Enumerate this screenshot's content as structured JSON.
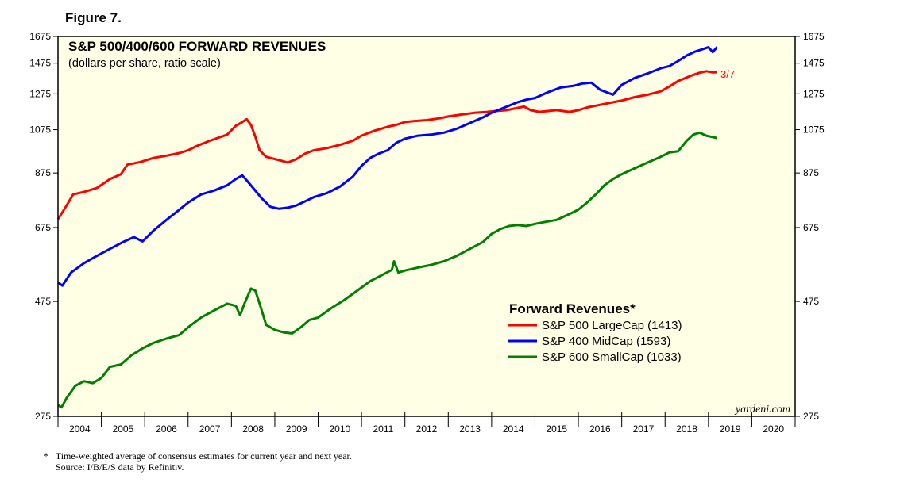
{
  "figure_label": "Figure 7.",
  "footnote": {
    "marker": "*",
    "line1": "Time-weighted average of consensus estimates for current year and next year.",
    "line2": "Source: I/B/E/S data by Refinitiv."
  },
  "colors": {
    "background": "#ffffe6",
    "sp500": "#ff0000",
    "sp400": "#0000ff",
    "sp600": "#008000"
  },
  "chart_data": {
    "type": "line",
    "title": "S&P 500/400/600 FORWARD REVENUES",
    "subtitle": "(dollars per share, ratio scale)",
    "scale": "log",
    "ylim": [
      275,
      1675
    ],
    "yticks": [
      "275",
      "475",
      "675",
      "875",
      "1075",
      "1275",
      "1475",
      "1675"
    ],
    "xticks": [
      "2004",
      "2005",
      "2006",
      "2007",
      "2008",
      "2009",
      "2010",
      "2011",
      "2012",
      "2013",
      "2014",
      "2015",
      "2016",
      "2017",
      "2018",
      "2019",
      "2020"
    ],
    "xlim": [
      2004.0,
      2021.0
    ],
    "legend_title": "Forward Revenues*",
    "end_annotation": "3/7",
    "source_label": "yardeni.com",
    "series": [
      {
        "name": "S&P 500 LargeCap (1413)",
        "color": "#ff0000",
        "x": [
          2004.0,
          2004.2,
          2004.35,
          2004.6,
          2004.9,
          2005.2,
          2005.45,
          2005.6,
          2005.9,
          2006.2,
          2006.5,
          2006.8,
          2007.0,
          2007.2,
          2007.5,
          2007.9,
          2008.1,
          2008.25,
          2008.35,
          2008.45,
          2008.55,
          2008.65,
          2008.8,
          2009.0,
          2009.2,
          2009.3,
          2009.5,
          2009.7,
          2009.9,
          2010.2,
          2010.5,
          2010.8,
          2011.0,
          2011.3,
          2011.6,
          2011.8,
          2012.0,
          2012.2,
          2012.5,
          2012.8,
          2013.0,
          2013.3,
          2013.6,
          2013.9,
          2014.1,
          2014.35,
          2014.55,
          2014.75,
          2014.9,
          2015.1,
          2015.3,
          2015.5,
          2015.8,
          2016.0,
          2016.2,
          2016.5,
          2016.8,
          2017.0,
          2017.3,
          2017.6,
          2017.9,
          2018.1,
          2018.3,
          2018.6,
          2018.8,
          2018.95,
          2019.1,
          2019.2
        ],
        "values": [
          702,
          750,
          790,
          800,
          815,
          850,
          870,
          910,
          922,
          940,
          950,
          962,
          975,
          995,
          1020,
          1050,
          1095,
          1115,
          1130,
          1100,
          1040,
          975,
          945,
          935,
          925,
          920,
          935,
          960,
          975,
          985,
          1000,
          1020,
          1045,
          1070,
          1090,
          1100,
          1115,
          1120,
          1125,
          1135,
          1145,
          1155,
          1165,
          1170,
          1175,
          1180,
          1190,
          1200,
          1180,
          1170,
          1175,
          1180,
          1170,
          1180,
          1195,
          1210,
          1225,
          1235,
          1255,
          1270,
          1290,
          1320,
          1355,
          1390,
          1410,
          1420,
          1412,
          1413
        ]
      },
      {
        "name": "S&P 400 MidCap (1593)",
        "color": "#0000ff",
        "x": [
          2004.0,
          2004.1,
          2004.3,
          2004.6,
          2004.9,
          2005.2,
          2005.5,
          2005.75,
          2005.95,
          2006.2,
          2006.5,
          2006.8,
          2007.0,
          2007.3,
          2007.6,
          2007.9,
          2008.1,
          2008.25,
          2008.35,
          2008.5,
          2008.7,
          2008.9,
          2009.1,
          2009.3,
          2009.5,
          2009.7,
          2009.9,
          2010.2,
          2010.5,
          2010.8,
          2011.0,
          2011.2,
          2011.4,
          2011.6,
          2011.8,
          2012.0,
          2012.3,
          2012.6,
          2012.9,
          2013.2,
          2013.5,
          2013.8,
          2014.0,
          2014.3,
          2014.6,
          2014.8,
          2015.0,
          2015.3,
          2015.6,
          2015.9,
          2016.1,
          2016.3,
          2016.5,
          2016.8,
          2017.0,
          2017.3,
          2017.6,
          2017.9,
          2018.1,
          2018.3,
          2018.5,
          2018.7,
          2018.85,
          2019.0,
          2019.1,
          2019.2
        ],
        "values": [
          520,
          512,
          545,
          570,
          590,
          610,
          630,
          645,
          632,
          665,
          700,
          735,
          760,
          790,
          805,
          825,
          850,
          865,
          845,
          815,
          775,
          745,
          738,
          742,
          750,
          765,
          780,
          795,
          820,
          860,
          905,
          940,
          960,
          975,
          1010,
          1030,
          1045,
          1050,
          1060,
          1080,
          1110,
          1140,
          1165,
          1195,
          1225,
          1240,
          1250,
          1285,
          1315,
          1325,
          1340,
          1345,
          1300,
          1270,
          1330,
          1375,
          1405,
          1440,
          1455,
          1490,
          1530,
          1560,
          1575,
          1592,
          1555,
          1593
        ]
      },
      {
        "name": "S&P 600 SmallCap (1033)",
        "color": "#008000",
        "x": [
          2004.0,
          2004.08,
          2004.2,
          2004.4,
          2004.6,
          2004.8,
          2005.0,
          2005.2,
          2005.45,
          2005.7,
          2005.95,
          2006.2,
          2006.5,
          2006.8,
          2007.0,
          2007.3,
          2007.6,
          2007.9,
          2008.1,
          2008.2,
          2008.3,
          2008.45,
          2008.55,
          2008.65,
          2008.8,
          2009.0,
          2009.2,
          2009.4,
          2009.6,
          2009.8,
          2010.0,
          2010.3,
          2010.6,
          2010.9,
          2011.2,
          2011.5,
          2011.7,
          2011.75,
          2011.85,
          2012.0,
          2012.3,
          2012.6,
          2012.9,
          2013.2,
          2013.5,
          2013.8,
          2014.0,
          2014.2,
          2014.4,
          2014.6,
          2014.8,
          2015.0,
          2015.3,
          2015.5,
          2015.8,
          2016.0,
          2016.2,
          2016.4,
          2016.6,
          2016.8,
          2017.0,
          2017.3,
          2017.6,
          2017.9,
          2018.1,
          2018.3,
          2018.5,
          2018.65,
          2018.8,
          2018.95,
          2019.05,
          2019.2
        ],
        "values": [
          290,
          287,
          300,
          318,
          325,
          322,
          330,
          348,
          352,
          368,
          380,
          390,
          398,
          405,
          420,
          440,
          455,
          470,
          465,
          445,
          470,
          505,
          500,
          470,
          425,
          415,
          410,
          408,
          420,
          435,
          440,
          460,
          478,
          500,
          523,
          540,
          552,
          575,
          545,
          550,
          558,
          565,
          575,
          590,
          610,
          630,
          655,
          670,
          680,
          683,
          680,
          687,
          695,
          700,
          720,
          735,
          760,
          790,
          825,
          850,
          870,
          895,
          920,
          945,
          965,
          970,
          1020,
          1050,
          1060,
          1045,
          1040,
          1033
        ]
      }
    ]
  }
}
